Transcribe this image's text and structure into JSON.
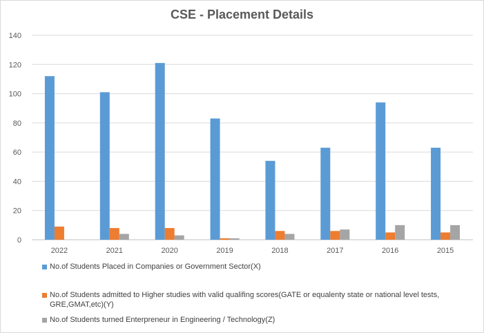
{
  "chart_data": {
    "type": "bar",
    "title": "CSE - Placement Details",
    "categories": [
      "2022",
      "2021",
      "2020",
      "2019",
      "2018",
      "2017",
      "2016",
      "2015"
    ],
    "series": [
      {
        "name": "No.of Students Placed in Companies or Government Sector(X)",
        "color": "#5b9bd5",
        "values": [
          112,
          101,
          121,
          83,
          54,
          63,
          94,
          63
        ]
      },
      {
        "name": "No.of Students admitted to Higher studies with valid qualifing scores(GATE or equalenty state or national level tests, GRE,GMAT,etc)(Y)",
        "color": "#ed7d31",
        "values": [
          9,
          8,
          8,
          1,
          6,
          6,
          5,
          5
        ]
      },
      {
        "name": "No.of Students turned Enterpreneur  in Engineering / Technology(Z)",
        "color": "#a5a5a5",
        "values": [
          0,
          4,
          3,
          1,
          4,
          7,
          10,
          10
        ]
      }
    ],
    "ylim": [
      0,
      140
    ],
    "yticks": [
      0,
      20,
      40,
      60,
      80,
      100,
      120,
      140
    ],
    "grid": true,
    "legend": "bottom",
    "xlabel": "",
    "ylabel": ""
  }
}
